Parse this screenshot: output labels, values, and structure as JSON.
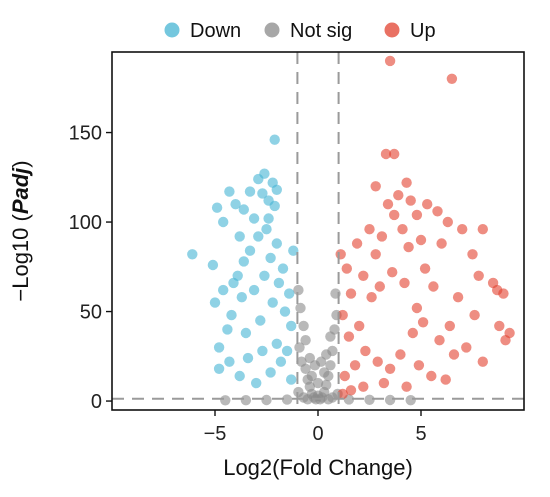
{
  "chart_data": {
    "type": "scatter",
    "title": "",
    "xlabel": "Log2(Fold Change)",
    "ylabel_prefix": "−Log10 (",
    "ylabel_emph": "Padj",
    "ylabel_suffix": ")",
    "xlim": [
      -10,
      10
    ],
    "ylim": [
      -5,
      195
    ],
    "x_ticks": [
      -5,
      0,
      5
    ],
    "y_ticks": [
      0,
      50,
      100,
      150
    ],
    "x_tick_labels": [
      "−5",
      "0",
      "5"
    ],
    "y_tick_labels": [
      "0",
      "50",
      "100",
      "150"
    ],
    "grid": false,
    "legend_position": "top",
    "thresholds": {
      "log2fc": [
        -1,
        1
      ],
      "neg_log10_padj": 1.3
    },
    "series": [
      {
        "name": "Down",
        "color": "#45b4d3",
        "points": [
          [
            -6.1,
            82
          ],
          [
            -5.1,
            76
          ],
          [
            -4.9,
            108
          ],
          [
            -4.6,
            100
          ],
          [
            -4.3,
            117
          ],
          [
            -4.0,
            110
          ],
          [
            -3.6,
            107
          ],
          [
            -3.3,
            117
          ],
          [
            -3.1,
            102
          ],
          [
            -2.9,
            124
          ],
          [
            -2.7,
            116
          ],
          [
            -2.6,
            127
          ],
          [
            -2.4,
            112
          ],
          [
            -2.2,
            122
          ],
          [
            -2.1,
            109
          ],
          [
            -2.1,
            146
          ],
          [
            -5.0,
            55
          ],
          [
            -4.8,
            30
          ],
          [
            -4.6,
            62
          ],
          [
            -4.4,
            40
          ],
          [
            -4.2,
            48
          ],
          [
            -3.9,
            70
          ],
          [
            -3.7,
            58
          ],
          [
            -3.5,
            38
          ],
          [
            -3.3,
            84
          ],
          [
            -3.1,
            62
          ],
          [
            -2.9,
            92
          ],
          [
            -2.8,
            45
          ],
          [
            -2.6,
            70
          ],
          [
            -2.5,
            96
          ],
          [
            -2.3,
            80
          ],
          [
            -2.2,
            55
          ],
          [
            -2.0,
            88
          ],
          [
            -1.9,
            66
          ],
          [
            -1.7,
            74
          ],
          [
            -1.6,
            50
          ],
          [
            -1.4,
            60
          ],
          [
            -1.3,
            42
          ],
          [
            -1.2,
            84
          ],
          [
            -4.8,
            18
          ],
          [
            -4.3,
            22
          ],
          [
            -3.8,
            14
          ],
          [
            -3.4,
            24
          ],
          [
            -3.0,
            10
          ],
          [
            -2.7,
            28
          ],
          [
            -2.3,
            16
          ],
          [
            -2.0,
            32
          ],
          [
            -1.8,
            22
          ],
          [
            -1.5,
            28
          ],
          [
            -1.3,
            12
          ],
          [
            -3.6,
            78
          ],
          [
            -4.1,
            66
          ],
          [
            -2.4,
            102
          ],
          [
            -3.8,
            92
          ],
          [
            -2.0,
            118
          ]
        ]
      },
      {
        "name": "Not sig",
        "color": "#8a8a8a",
        "points": [
          [
            -0.9,
            30
          ],
          [
            -0.8,
            22
          ],
          [
            -0.7,
            42
          ],
          [
            -0.6,
            18
          ],
          [
            -0.5,
            12
          ],
          [
            -0.4,
            8
          ],
          [
            -0.3,
            4
          ],
          [
            -0.2,
            2
          ],
          [
            -0.1,
            1
          ],
          [
            0.0,
            3
          ],
          [
            0.1,
            1
          ],
          [
            0.2,
            2
          ],
          [
            0.3,
            5
          ],
          [
            0.4,
            9
          ],
          [
            0.5,
            14
          ],
          [
            0.6,
            20
          ],
          [
            0.7,
            28
          ],
          [
            0.8,
            40
          ],
          [
            0.9,
            48
          ],
          [
            -0.85,
            52
          ],
          [
            -0.95,
            62
          ],
          [
            0.85,
            60
          ],
          [
            -0.6,
            34
          ],
          [
            0.6,
            36
          ],
          [
            -0.4,
            24
          ],
          [
            0.4,
            26
          ],
          [
            -0.3,
            14
          ],
          [
            0.3,
            16
          ],
          [
            -0.95,
            5
          ],
          [
            0.95,
            4
          ],
          [
            -0.7,
            2
          ],
          [
            0.7,
            2
          ],
          [
            -0.5,
            1
          ],
          [
            0.5,
            1
          ],
          [
            -1.5,
            0.8
          ],
          [
            1.5,
            0.9
          ],
          [
            -2.5,
            0.6
          ],
          [
            2.5,
            0.7
          ],
          [
            -3.5,
            0.5
          ],
          [
            3.5,
            0.6
          ],
          [
            -4.5,
            0.4
          ],
          [
            4.5,
            0.5
          ],
          [
            0.0,
            10
          ],
          [
            -0.15,
            20
          ],
          [
            0.15,
            22
          ]
        ]
      },
      {
        "name": "Up",
        "color": "#e2412f",
        "points": [
          [
            3.5,
            190
          ],
          [
            6.5,
            180
          ],
          [
            3.3,
            138
          ],
          [
            3.7,
            138
          ],
          [
            2.8,
            120
          ],
          [
            4.3,
            122
          ],
          [
            3.9,
            115
          ],
          [
            4.5,
            112
          ],
          [
            5.3,
            110
          ],
          [
            4.8,
            104
          ],
          [
            5.8,
            106
          ],
          [
            6.3,
            100
          ],
          [
            7.0,
            96
          ],
          [
            8.0,
            96
          ],
          [
            5.0,
            90
          ],
          [
            6.0,
            88
          ],
          [
            7.5,
            82
          ],
          [
            8.7,
            62
          ],
          [
            9.0,
            60
          ],
          [
            8.5,
            66
          ],
          [
            7.8,
            70
          ],
          [
            9.3,
            38
          ],
          [
            8.8,
            42
          ],
          [
            9.1,
            34
          ],
          [
            8.0,
            22
          ],
          [
            7.6,
            48
          ],
          [
            6.8,
            58
          ],
          [
            6.4,
            42
          ],
          [
            5.6,
            64
          ],
          [
            5.2,
            74
          ],
          [
            4.8,
            52
          ],
          [
            4.4,
            86
          ],
          [
            4.1,
            96
          ],
          [
            3.7,
            104
          ],
          [
            3.4,
            110
          ],
          [
            3.1,
            92
          ],
          [
            2.8,
            82
          ],
          [
            2.5,
            96
          ],
          [
            2.2,
            70
          ],
          [
            1.9,
            88
          ],
          [
            1.6,
            60
          ],
          [
            1.4,
            74
          ],
          [
            1.2,
            48
          ],
          [
            1.1,
            82
          ],
          [
            1.5,
            36
          ],
          [
            2.0,
            42
          ],
          [
            2.6,
            58
          ],
          [
            3.0,
            64
          ],
          [
            3.6,
            72
          ],
          [
            4.2,
            66
          ],
          [
            4.6,
            38
          ],
          [
            5.1,
            44
          ],
          [
            5.9,
            34
          ],
          [
            6.6,
            26
          ],
          [
            7.2,
            30
          ],
          [
            2.3,
            28
          ],
          [
            1.8,
            20
          ],
          [
            1.3,
            14
          ],
          [
            2.9,
            22
          ],
          [
            3.5,
            18
          ],
          [
            4.0,
            26
          ],
          [
            4.9,
            20
          ],
          [
            5.5,
            14
          ],
          [
            6.2,
            12
          ],
          [
            1.6,
            6
          ],
          [
            2.2,
            8
          ],
          [
            3.2,
            10
          ],
          [
            4.3,
            8
          ],
          [
            1.2,
            4
          ]
        ]
      }
    ]
  }
}
